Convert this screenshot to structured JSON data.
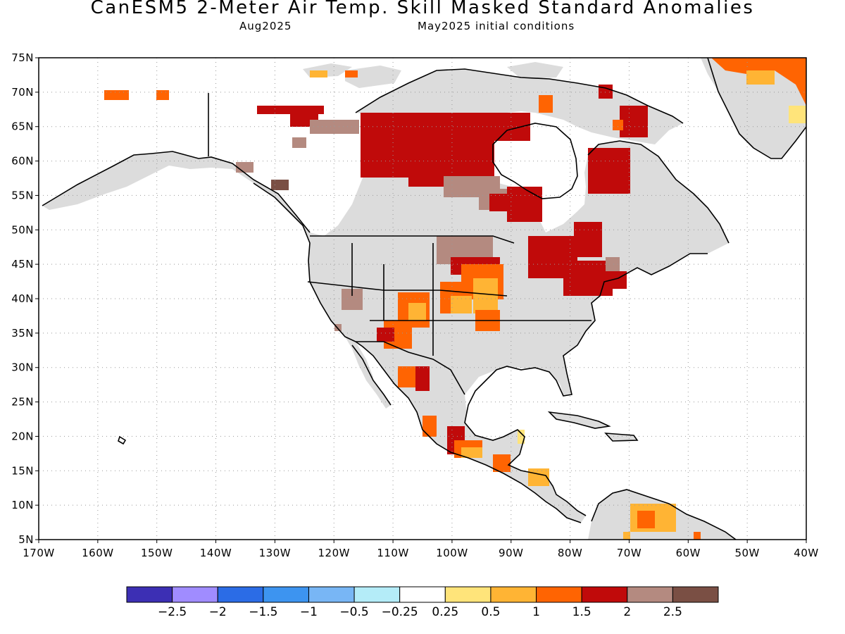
{
  "title": "CanESM5 2-Meter Air Temp. Skill Masked Standard Anomalies",
  "valid_month": "Aug2025",
  "init": "May2025 initial conditions",
  "map": {
    "lon_range": [
      -170,
      -40
    ],
    "lat_range": [
      5,
      75
    ],
    "lat_ticks": [
      "5N",
      "10N",
      "15N",
      "20N",
      "25N",
      "30N",
      "35N",
      "40N",
      "45N",
      "50N",
      "55N",
      "60N",
      "65N",
      "70N",
      "75N"
    ],
    "lon_ticks": [
      "170W",
      "160W",
      "150W",
      "140W",
      "130W",
      "120W",
      "110W",
      "100W",
      "90W",
      "80W",
      "70W",
      "60W",
      "50W",
      "40W"
    ],
    "masked_color": "#dcdcdc",
    "grid_style": "dotted"
  },
  "legend": {
    "colors": [
      "#3c2fb4",
      "#a08cff",
      "#2b6ce6",
      "#3d94f0",
      "#78b6f5",
      "#b4ecf8",
      "#ffffff",
      "#ffe47a",
      "#ffb434",
      "#ff6402",
      "#c00a0a",
      "#b48a80",
      "#7a4f44"
    ],
    "labels": [
      "-2.5",
      "-2",
      "-1.5",
      "-1",
      "-0.5",
      "-0.25",
      "0.25",
      "0.5",
      "1",
      "1.5",
      "2",
      "2.5"
    ]
  }
}
